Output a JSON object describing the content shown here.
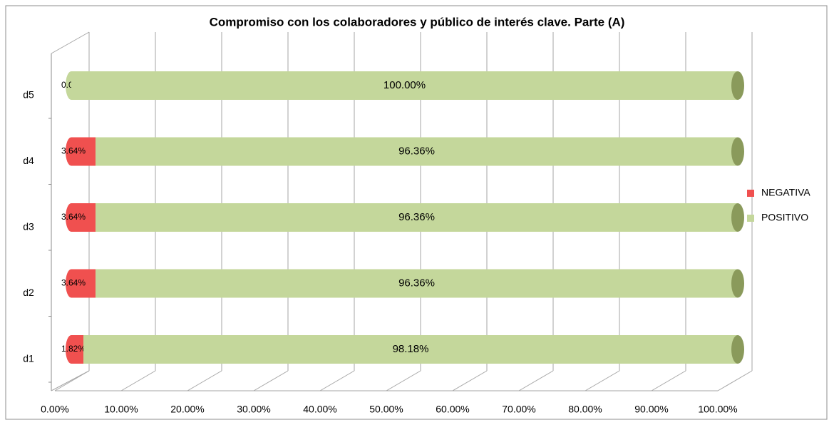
{
  "chart_data": {
    "type": "bar",
    "orientation": "horizontal",
    "stacked": true,
    "title": "Compromiso con los colaboradores y público de interés clave. Parte (A)",
    "categories": [
      "d1",
      "d2",
      "d3",
      "d4",
      "d5"
    ],
    "series": [
      {
        "name": "NEGATIVA",
        "color": "#f0504f",
        "values": [
          1.82,
          3.64,
          3.64,
          3.64,
          0
        ],
        "value_labels": [
          "1.82%",
          "3.64%",
          "3.64%",
          "3.64%",
          "0.00%"
        ]
      },
      {
        "name": "POSITIVO",
        "color": "#c4d79b",
        "values": [
          98.18,
          96.36,
          96.36,
          96.36,
          100
        ],
        "value_labels": [
          "98.18%",
          "96.36%",
          "96.36%",
          "96.36%",
          "100.00%"
        ]
      }
    ],
    "xlim": [
      0,
      100
    ],
    "xticks": [
      {
        "value": 0,
        "label": "0.00%"
      },
      {
        "value": 10,
        "label": "10.00%"
      },
      {
        "value": 20,
        "label": "20.00%"
      },
      {
        "value": 30,
        "label": "30.00%"
      },
      {
        "value": 40,
        "label": "40.00%"
      },
      {
        "value": 50,
        "label": "50.00%"
      },
      {
        "value": 60,
        "label": "60.00%"
      },
      {
        "value": 70,
        "label": "70.00%"
      },
      {
        "value": 80,
        "label": "80.00%"
      },
      {
        "value": 90,
        "label": "90.00%"
      },
      {
        "value": 100,
        "label": "100.00%"
      }
    ],
    "grid": true,
    "legend": "right"
  }
}
